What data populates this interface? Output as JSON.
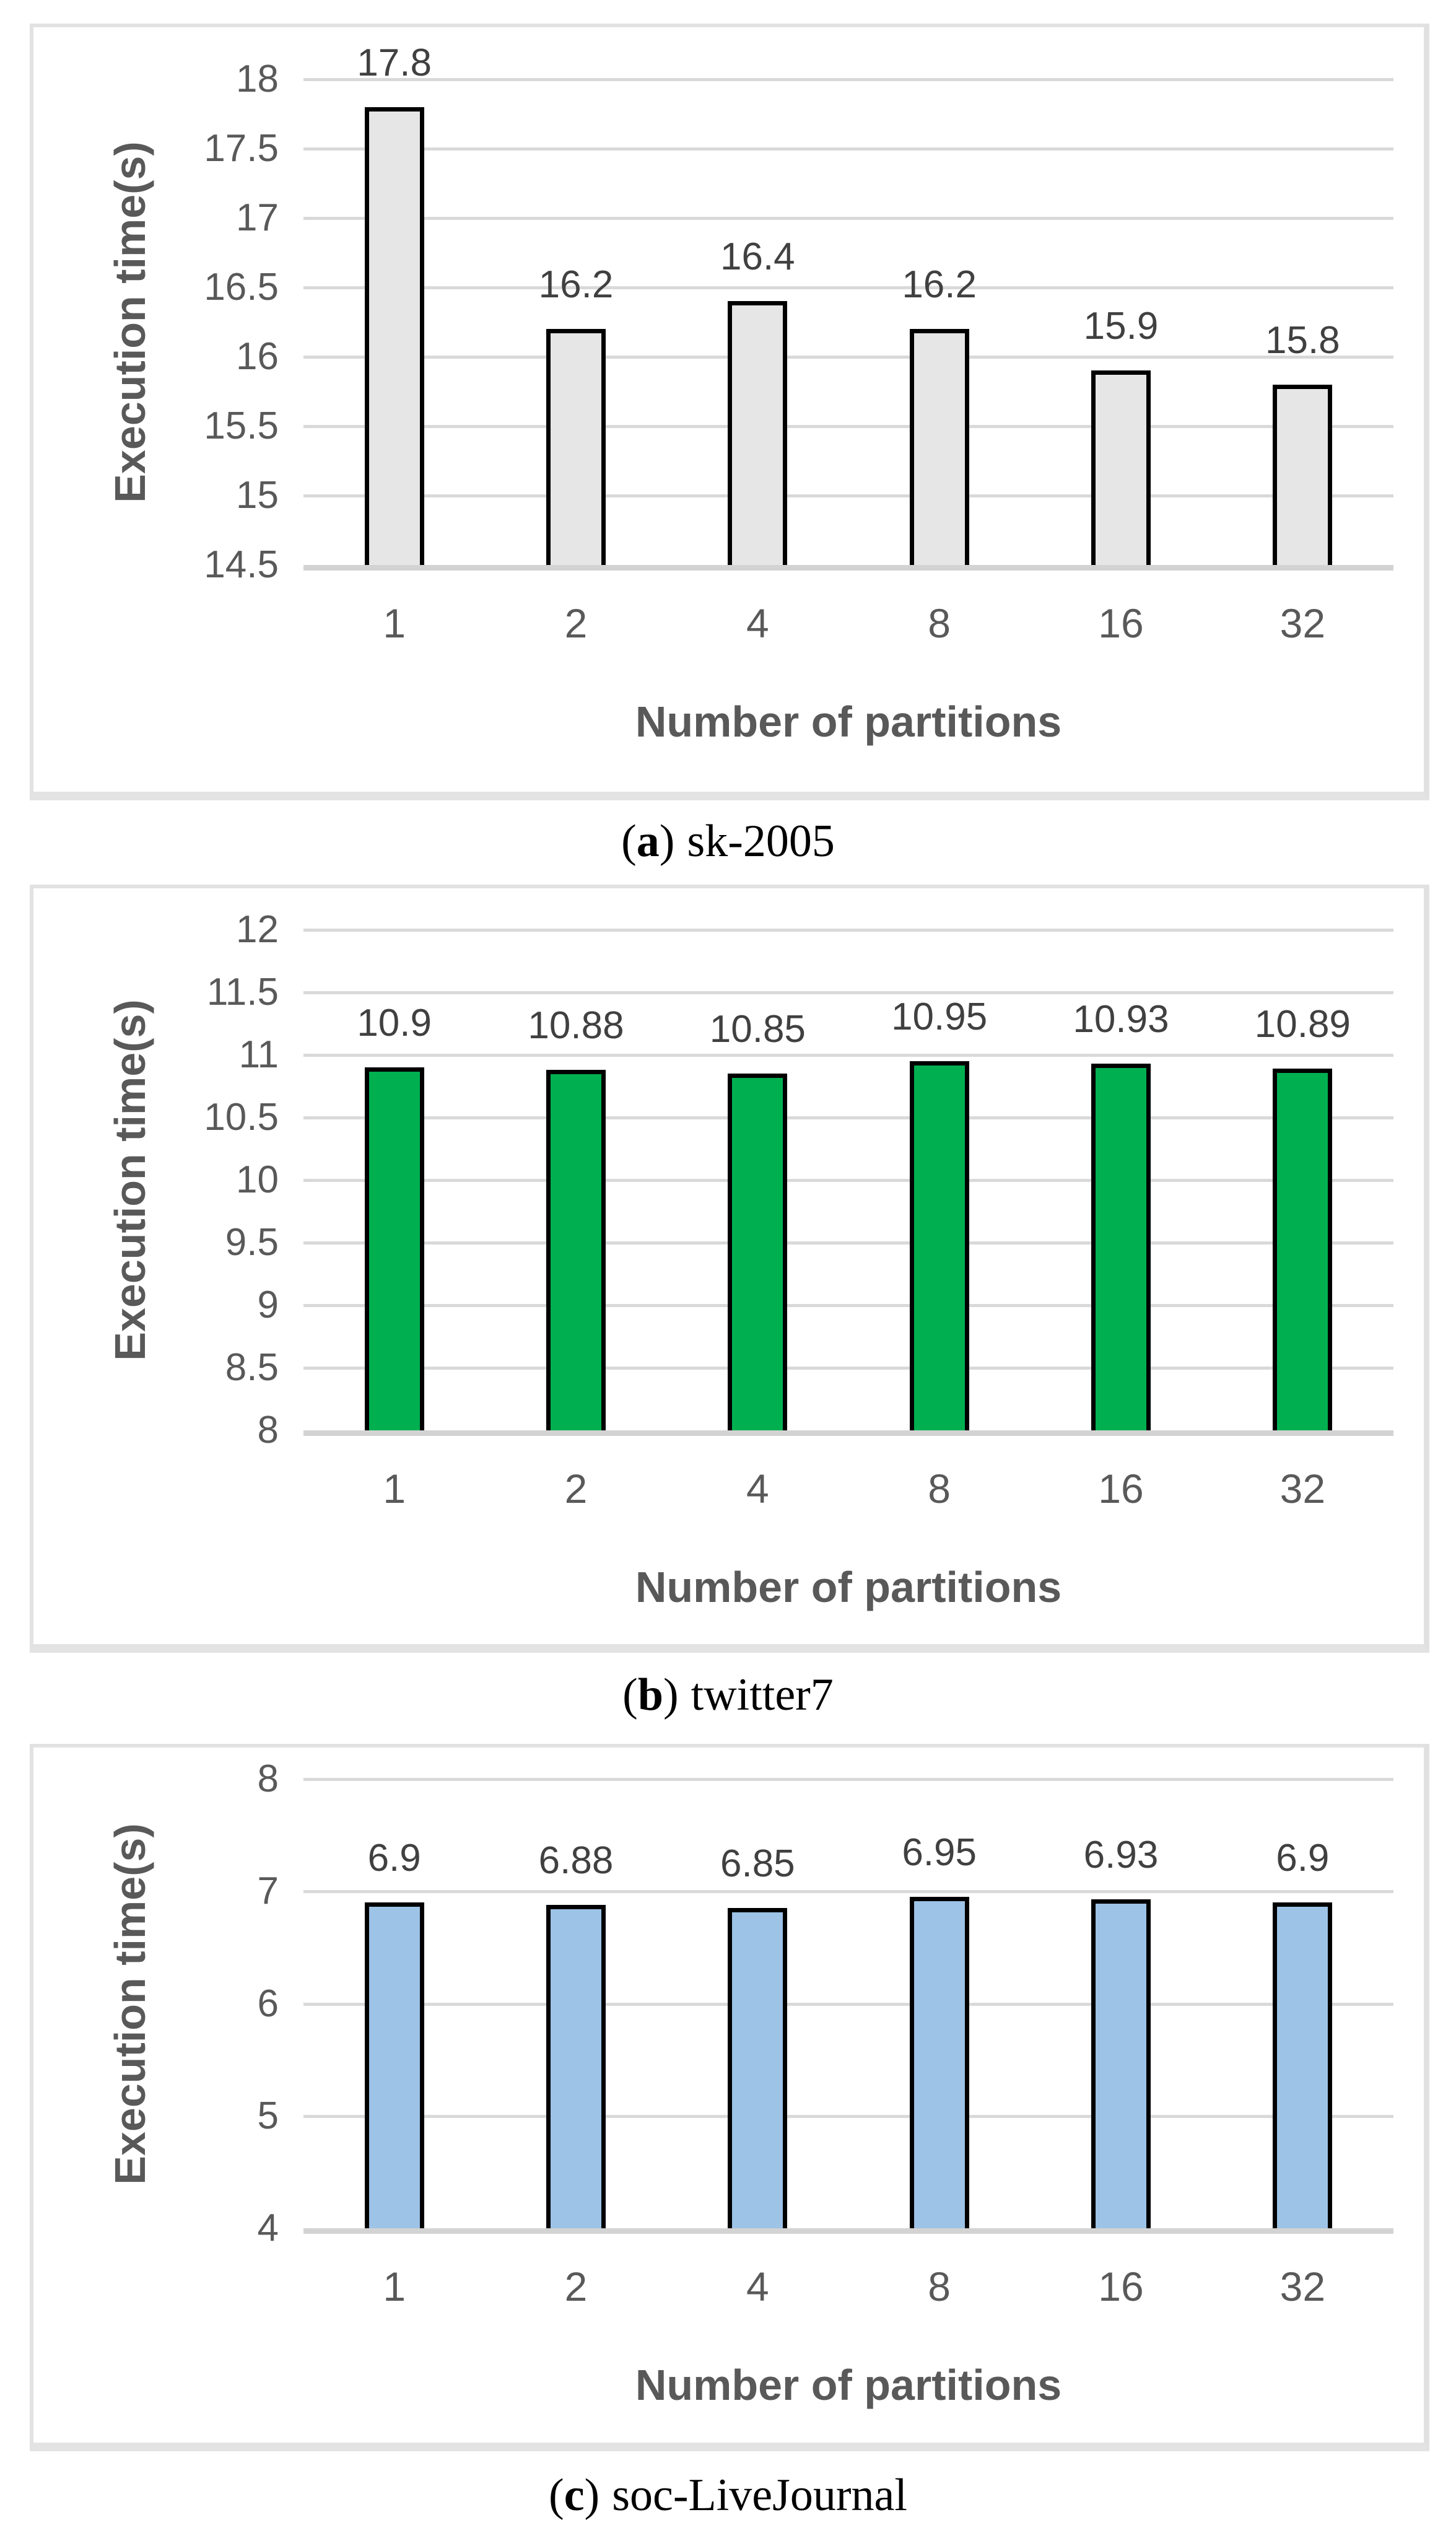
{
  "captions": [
    {
      "open": "(",
      "letter": "a",
      "close": ")",
      "label": "sk-2005"
    },
    {
      "open": "(",
      "letter": "b",
      "close": ")",
      "label": "twitter7"
    },
    {
      "open": "(",
      "letter": "c",
      "close": ")",
      "label": "soc-LiveJournal"
    }
  ],
  "chart_data": [
    {
      "type": "bar",
      "title": "(a) sk-2005",
      "xlabel": "Number of partitions",
      "ylabel": "Execution time(s)",
      "categories": [
        "1",
        "2",
        "4",
        "8",
        "16",
        "32"
      ],
      "values": [
        17.8,
        16.2,
        16.4,
        16.2,
        15.9,
        15.8
      ],
      "value_labels": [
        "17.8",
        "16.2",
        "16.4",
        "16.2",
        "15.9",
        "15.8"
      ],
      "ylim": [
        14.5,
        18
      ],
      "ytick_step": 0.5,
      "yticks": [
        "14.5",
        "15",
        "15.5",
        "16",
        "16.5",
        "17",
        "17.5",
        "18"
      ],
      "grid": true,
      "legend": "none",
      "bar_fill": "#e6e6e6",
      "bar_border": "#000000"
    },
    {
      "type": "bar",
      "title": "(b) twitter7",
      "xlabel": "Number of partitions",
      "ylabel": "Execution time(s)",
      "categories": [
        "1",
        "2",
        "4",
        "8",
        "16",
        "32"
      ],
      "values": [
        10.9,
        10.88,
        10.85,
        10.95,
        10.93,
        10.89
      ],
      "value_labels": [
        "10.9",
        "10.88",
        "10.85",
        "10.95",
        "10.93",
        "10.89"
      ],
      "ylim": [
        8,
        12
      ],
      "ytick_step": 0.5,
      "yticks": [
        "8",
        "8.5",
        "9",
        "9.5",
        "10",
        "10.5",
        "11",
        "11.5",
        "12"
      ],
      "grid": true,
      "legend": "none",
      "bar_fill": "#00b050",
      "bar_border": "#000000"
    },
    {
      "type": "bar",
      "title": "(c) soc-LiveJournal",
      "xlabel": "Number of partitions",
      "ylabel": "Execution time(s)",
      "categories": [
        "1",
        "2",
        "4",
        "8",
        "16",
        "32"
      ],
      "values": [
        6.9,
        6.88,
        6.85,
        6.95,
        6.93,
        6.9
      ],
      "value_labels": [
        "6.9",
        "6.88",
        "6.85",
        "6.95",
        "6.93",
        "6.9"
      ],
      "ylim": [
        4,
        8
      ],
      "ytick_step": 1,
      "yticks": [
        "4",
        "5",
        "6",
        "7",
        "8"
      ],
      "grid": true,
      "legend": "none",
      "bar_fill": "#9dc3e6",
      "bar_border": "#000000"
    }
  ]
}
